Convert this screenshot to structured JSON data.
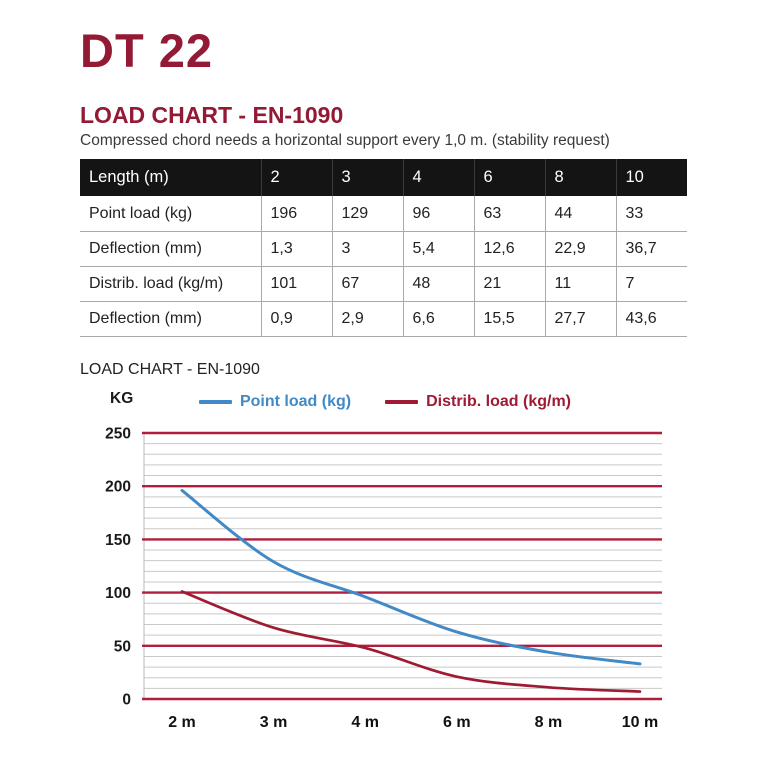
{
  "page": {
    "title": "DT 22",
    "section_heading": "LOAD CHART - EN-1090",
    "subtitle": "Compressed chord needs a horizontal support every 1,0 m. (stability request)",
    "chart_heading": "LOAD CHART - EN-1090"
  },
  "table": {
    "header": [
      "Length (m)",
      "2",
      "3",
      "4",
      "6",
      "8",
      "10"
    ],
    "rows": [
      [
        "Point load (kg)",
        "196",
        "129",
        "96",
        "63",
        "44",
        "33"
      ],
      [
        "Deflection (mm)",
        "1,3",
        "3",
        "5,4",
        "12,6",
        "22,9",
        "36,7"
      ],
      [
        "Distrib. load (kg/m)",
        "101",
        "67",
        "48",
        "21",
        "11",
        "7"
      ],
      [
        "Deflection (mm)",
        "0,9",
        "2,9",
        "6,6",
        "15,5",
        "27,7",
        "43,6"
      ]
    ]
  },
  "chart_data": {
    "type": "line",
    "categories": [
      "2 m",
      "3 m",
      "4 m",
      "6 m",
      "8 m",
      "10 m"
    ],
    "series": [
      {
        "name": "Point load (kg)",
        "color": "#4189c7",
        "values": [
          196,
          129,
          96,
          63,
          44,
          33
        ]
      },
      {
        "name": "Distrib. load (kg/m)",
        "color": "#9e1b33",
        "values": [
          101,
          67,
          48,
          21,
          11,
          7
        ]
      }
    ],
    "ylabel": "KG",
    "ylim": [
      0,
      250
    ],
    "yticks": [
      0,
      50,
      100,
      150,
      200,
      250
    ],
    "minor_grid_step": 10,
    "grid": true,
    "legend_position": "top",
    "major_grid_color": "#b01e3c",
    "minor_grid_color": "#c9c9c9"
  },
  "colors": {
    "accent": "#931a35",
    "table_header_bg": "#141414",
    "blue": "#4189c7"
  }
}
